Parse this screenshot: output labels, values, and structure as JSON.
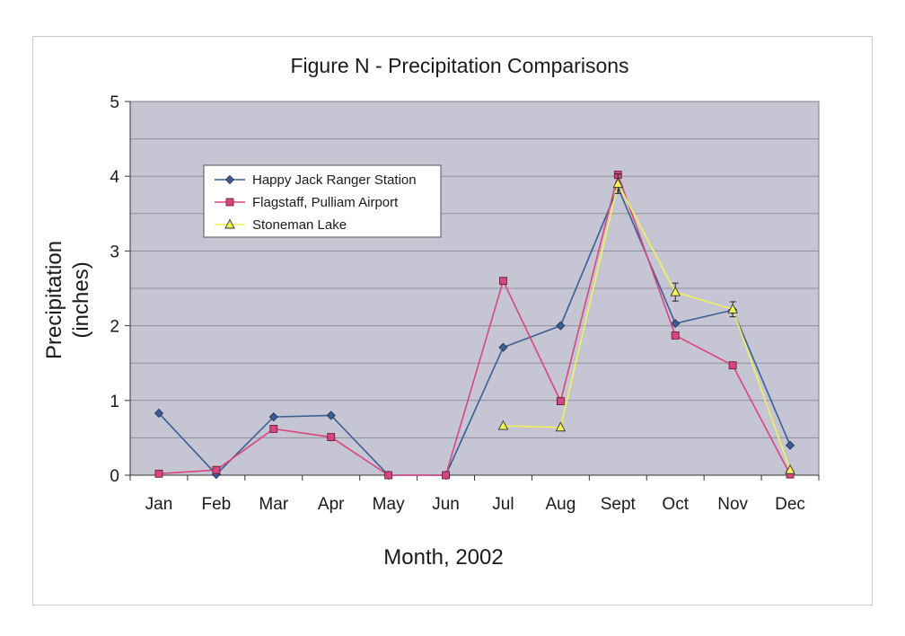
{
  "chart_data": {
    "type": "line",
    "title": "Figure N - Precipitation Comparisons",
    "xlabel": "Month, 2002",
    "ylabel_lines": [
      "Precipitation",
      "(inches)"
    ],
    "categories": [
      "Jan",
      "Feb",
      "Mar",
      "Apr",
      "May",
      "Jun",
      "Jul",
      "Aug",
      "Sept",
      "Oct",
      "Nov",
      "Dec"
    ],
    "ylim": [
      0,
      5
    ],
    "yticks": [
      0,
      1,
      2,
      3,
      4,
      5
    ],
    "grid": true,
    "legend_position": "top-left inside plot",
    "series": [
      {
        "name": "Happy Jack Ranger Station",
        "color": "#3a5e94",
        "marker": "diamond",
        "values": [
          0.83,
          0.01,
          0.78,
          0.8,
          0.0,
          0.0,
          1.71,
          2.0,
          3.85,
          2.03,
          2.21,
          0.4
        ]
      },
      {
        "name": "Flagstaff, Pulliam Airport",
        "color": "#d8467e",
        "marker": "square",
        "values": [
          0.02,
          0.07,
          0.62,
          0.51,
          0.0,
          0.0,
          2.6,
          0.99,
          4.02,
          1.87,
          1.47,
          0.01
        ]
      },
      {
        "name": "Stoneman Lake",
        "color": "#f2f25a",
        "marker": "triangle",
        "values": [
          null,
          null,
          null,
          null,
          null,
          null,
          0.66,
          0.64,
          3.9,
          2.45,
          2.22,
          0.07
        ],
        "error": [
          null,
          null,
          null,
          null,
          null,
          null,
          0,
          0,
          0.13,
          0.12,
          0.1,
          0
        ]
      }
    ]
  },
  "colors": {
    "plot_background": "#c6c5d4",
    "gridline": "#8f8f9c"
  }
}
